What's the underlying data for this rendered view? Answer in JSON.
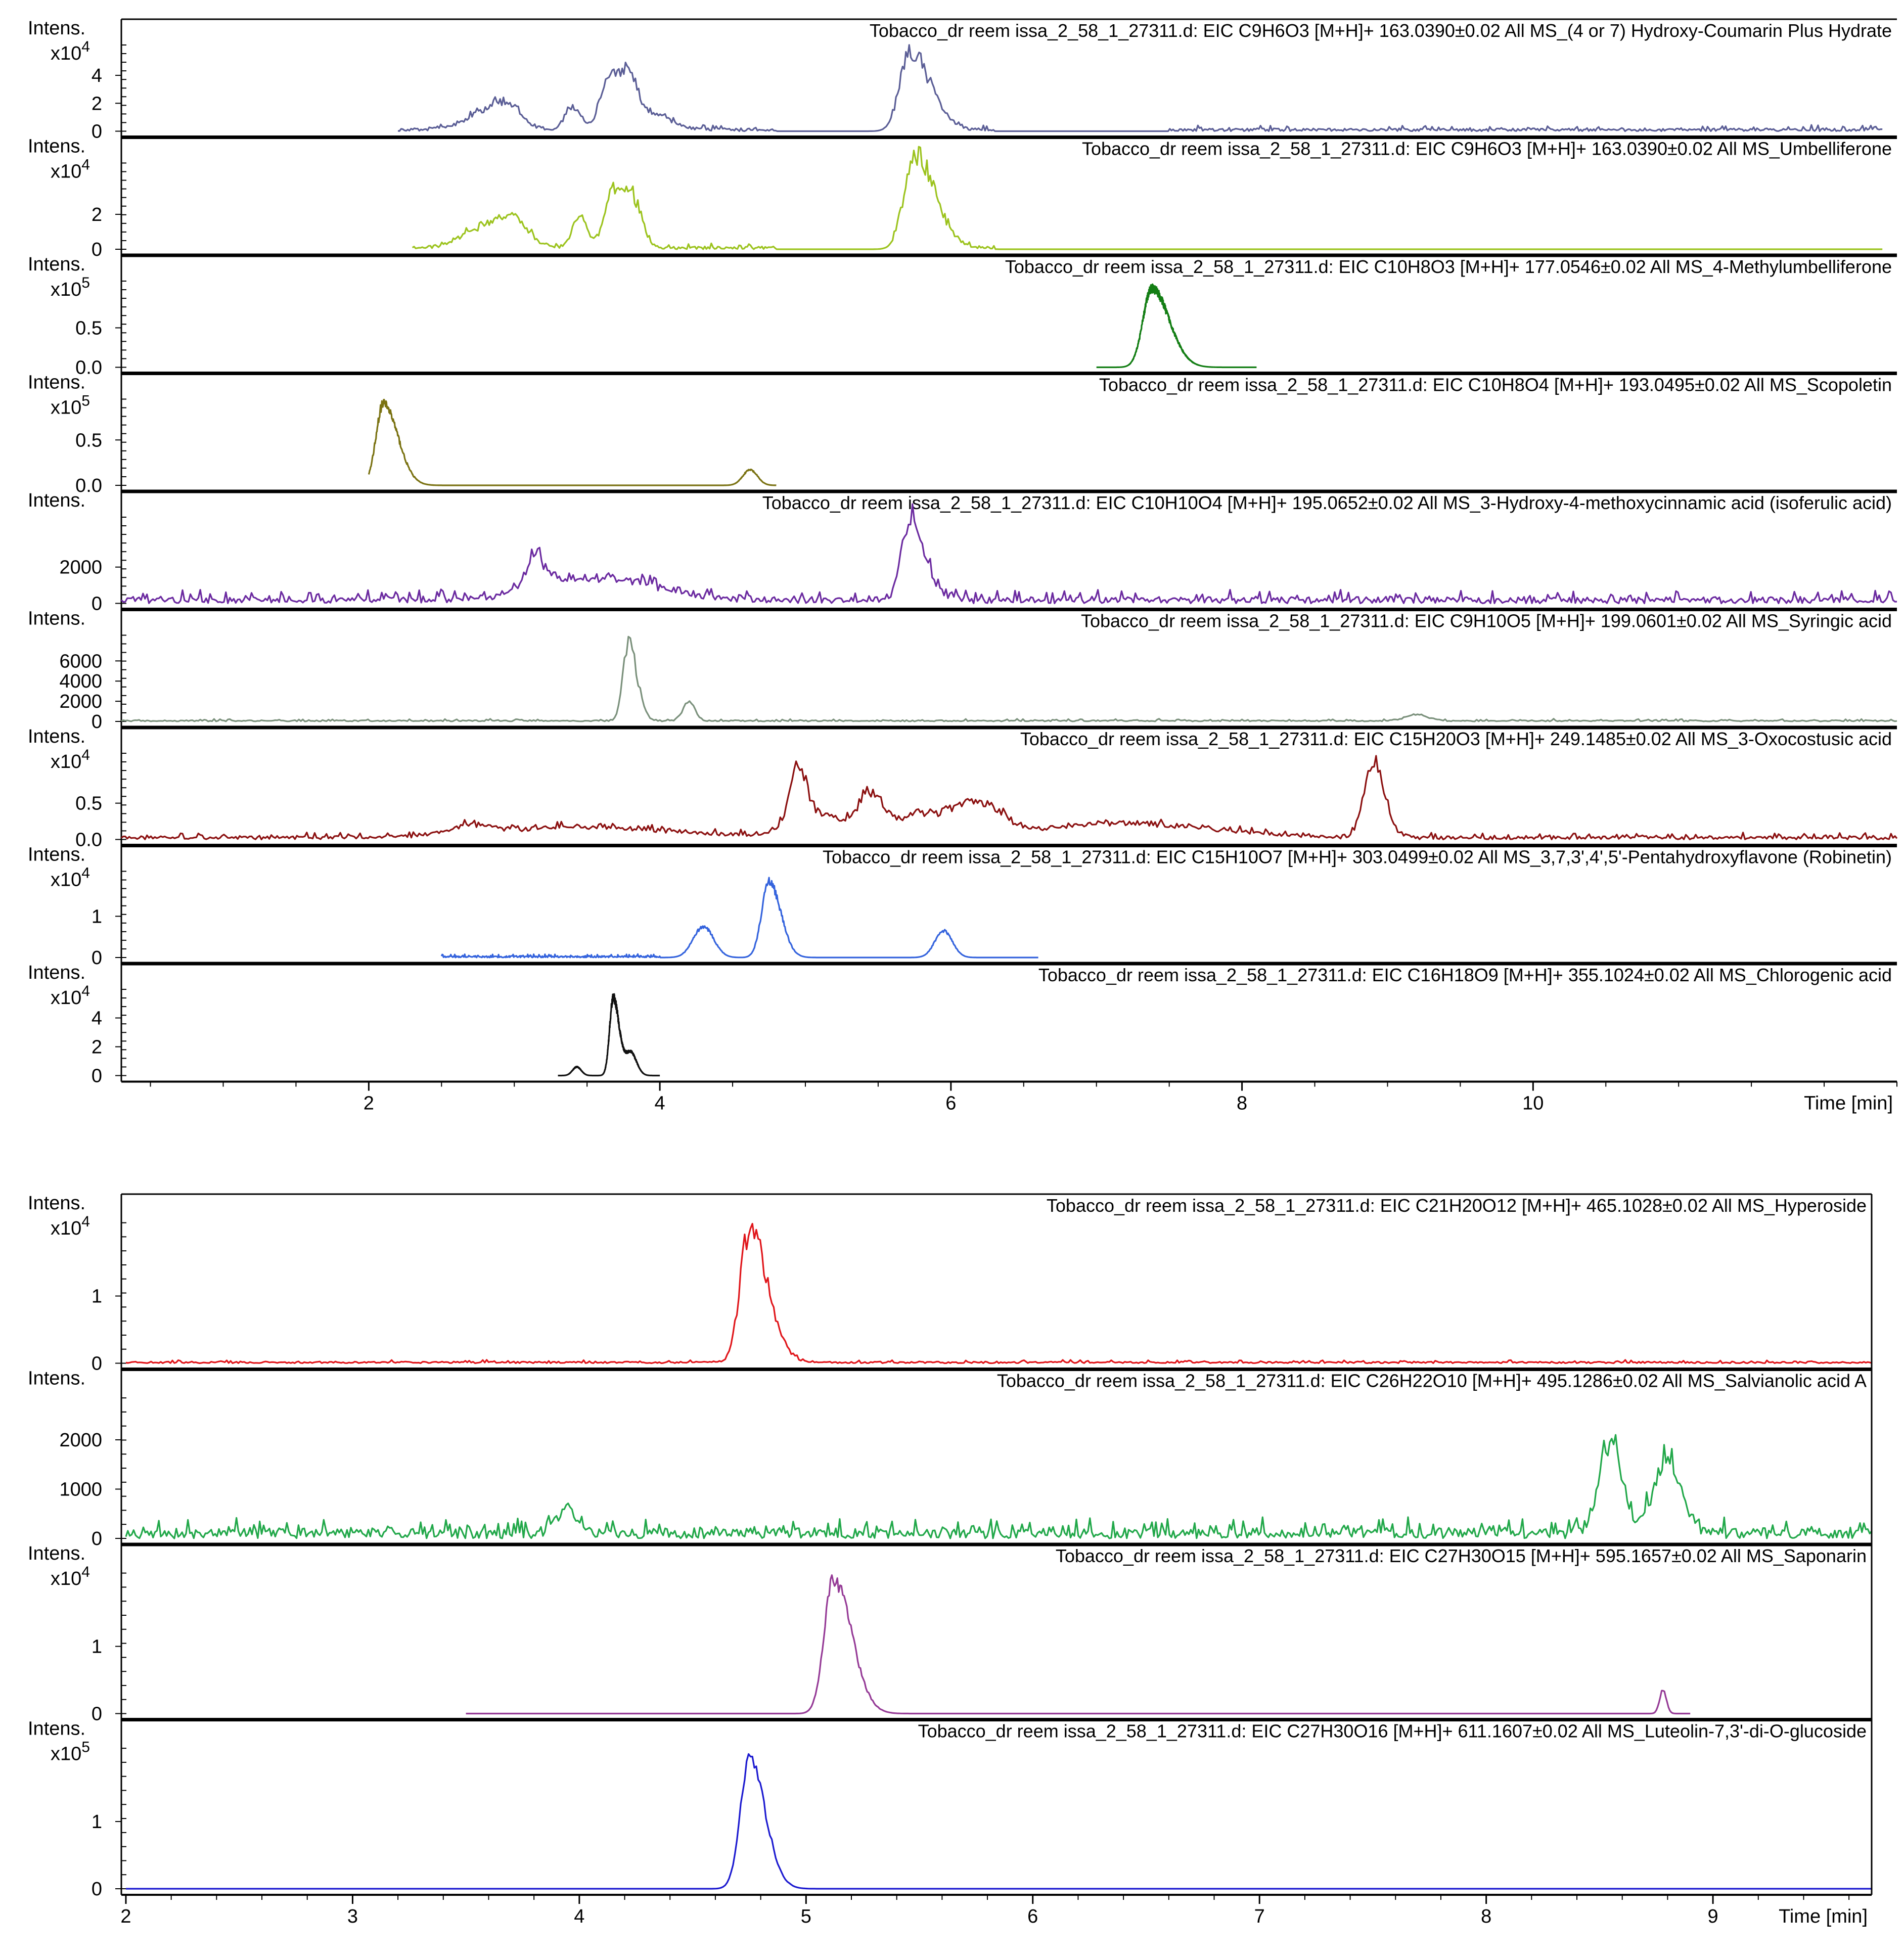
{
  "chart_data": [
    {
      "type": "line",
      "x_axis": {
        "label": "Time [min]",
        "range": [
          0.3,
          12.5
        ],
        "ticks": [
          2,
          4,
          6,
          8,
          10
        ],
        "tick_labels": [
          "2",
          "4",
          "6",
          "8",
          "10"
        ]
      },
      "panels": [
        {
          "y_label": "Intens.",
          "y_multiplier": "x10^4",
          "y_max": 6.5,
          "y_ticks": [
            0,
            2,
            4
          ],
          "y_tick_labels": [
            "0",
            "2",
            "4"
          ],
          "trace_title": "Tobacco_dr reem issa_2_58_1_27311.d: EIC C9H6O3 [M+H]+ 163.0390±0.02 All MS_(4 or 7) Hydroxy-Coumarin Plus Hydrate",
          "color": "#5b5e96",
          "x_start": 2.2,
          "x_end": 12.4,
          "noise": 0.25,
          "noise_segments": [
            [
              2.2,
              4.8
            ],
            [
              5.6,
              6.3
            ],
            [
              7.5,
              12.4
            ]
          ],
          "peaks": [
            {
              "x": 2.8,
              "y": 1.1,
              "w": 0.15
            },
            {
              "x": 2.95,
              "y": 1.3,
              "w": 0.1
            },
            {
              "x": 3.4,
              "y": 1.7,
              "w": 0.05
            },
            {
              "x": 3.65,
              "y": 3.4,
              "w": 0.06
            },
            {
              "x": 3.78,
              "y": 3.0,
              "w": 0.06
            },
            {
              "x": 3.9,
              "y": 1.3,
              "w": 0.15
            },
            {
              "x": 5.72,
              "y": 5.6,
              "w": 0.07,
              "tail": 0.14
            }
          ]
        },
        {
          "y_label": "Intens.",
          "y_multiplier": "x10^4",
          "y_max": 5.2,
          "y_ticks": [
            0,
            2
          ],
          "y_tick_labels": [
            "0",
            "2"
          ],
          "trace_title": "Tobacco_dr reem issa_2_58_1_27311.d: EIC C9H6O3 [M+H]+ 163.0390±0.02 All MS_Umbelliferone",
          "color": "#9cc31e",
          "x_start": 2.3,
          "x_end": 12.4,
          "noise": 0.2,
          "noise_segments": [
            [
              2.3,
              4.8
            ],
            [
              5.6,
              6.3
            ]
          ],
          "peaks": [
            {
              "x": 2.8,
              "y": 1.2,
              "w": 0.15
            },
            {
              "x": 3.0,
              "y": 1.3,
              "w": 0.1
            },
            {
              "x": 3.45,
              "y": 1.9,
              "w": 0.05
            },
            {
              "x": 3.68,
              "y": 3.2,
              "w": 0.06
            },
            {
              "x": 3.82,
              "y": 2.7,
              "w": 0.06
            },
            {
              "x": 5.75,
              "y": 5.4,
              "w": 0.07,
              "tail": 0.14
            }
          ]
        },
        {
          "y_label": "Intens.",
          "y_multiplier": "x10^5",
          "y_max": 1.15,
          "y_ticks": [
            0.0,
            0.5
          ],
          "y_tick_labels": [
            "0.0",
            "0.5"
          ],
          "trace_title": "Tobacco_dr reem issa_2_58_1_27311.d: EIC C10H8O3 [M+H]+ 177.0546±0.02 All MS_4-Methylumbelliferone",
          "color": "#137e14",
          "x_start": 7.0,
          "x_end": 8.1,
          "noise": 0.0,
          "noise_segments": [],
          "peaks": [
            {
              "x": 7.38,
              "y": 1.0,
              "w": 0.06,
              "tail": 0.12
            }
          ]
        },
        {
          "y_label": "Intens.",
          "y_multiplier": "x10^5",
          "y_max": 1.0,
          "y_ticks": [
            0.0,
            0.5
          ],
          "y_tick_labels": [
            "0.0",
            "0.5"
          ],
          "trace_title": "Tobacco_dr reem issa_2_58_1_27311.d: EIC C10H8O4 [M+H]+ 193.0495±0.02 All MS_Scopoletin",
          "color": "#7a7212",
          "x_start": 2.0,
          "x_end": 4.8,
          "noise": 0.0,
          "noise_segments": [],
          "peaks": [
            {
              "x": 2.1,
              "y": 0.9,
              "w": 0.05,
              "tail": 0.1
            },
            {
              "x": 4.62,
              "y": 0.17,
              "w": 0.05
            }
          ]
        },
        {
          "y_label": "Intens.",
          "y_multiplier": "",
          "y_max": 5000,
          "y_ticks": [
            0,
            2000
          ],
          "y_tick_labels": [
            "0",
            "2000"
          ],
          "trace_title": "Tobacco_dr reem issa_2_58_1_27311.d: EIC C10H10O4 [M+H]+ 195.0652±0.02 All MS_3-Hydroxy-4-methoxycinnamic acid (isoferulic acid)",
          "color": "#6b2aa0",
          "x_start": 0.3,
          "x_end": 12.5,
          "noise": 450,
          "noise_segments": [
            [
              0.3,
              12.5
            ]
          ],
          "peaks": [
            {
              "x": 3.15,
              "y": 1600,
              "w": 0.08
            },
            {
              "x": 3.6,
              "y": 1200,
              "w": 0.4
            },
            {
              "x": 5.72,
              "y": 4300,
              "w": 0.06,
              "tail": 0.1
            }
          ]
        },
        {
          "y_label": "Intens.",
          "y_multiplier": "",
          "y_max": 9000,
          "y_ticks": [
            0,
            2000,
            4000,
            6000
          ],
          "y_tick_labels": [
            "0",
            "2000",
            "4000",
            "6000"
          ],
          "trace_title": "Tobacco_dr reem issa_2_58_1_27311.d: EIC C9H10O5 [M+H]+ 199.0601±0.02 All MS_Syringic acid",
          "color": "#7b917c",
          "x_start": 0.3,
          "x_end": 12.5,
          "noise": 150,
          "noise_segments": [
            [
              0.3,
              12.5
            ]
          ],
          "peaks": [
            {
              "x": 3.78,
              "y": 7800,
              "w": 0.035,
              "tail": 0.06
            },
            {
              "x": 4.2,
              "y": 2000,
              "w": 0.04
            },
            {
              "x": 9.2,
              "y": 600,
              "w": 0.08
            }
          ]
        },
        {
          "y_label": "Intens.",
          "y_multiplier": "x10^4",
          "y_max": 1.25,
          "y_ticks": [
            0.0,
            0.5
          ],
          "y_tick_labels": [
            "0.0",
            "0.5"
          ],
          "trace_title": "Tobacco_dr reem issa_2_58_1_27311.d: EIC C15H20O3 [M+H]+ 249.1485±0.02 All MS_3-Oxocostusic acid",
          "color": "#8b1010",
          "x_start": 0.3,
          "x_end": 12.5,
          "noise": 0.06,
          "noise_segments": [
            [
              0.3,
              12.5
            ]
          ],
          "peaks": [
            {
              "x": 2.7,
              "y": 0.12,
              "w": 0.15
            },
            {
              "x": 3.5,
              "y": 0.15,
              "w": 0.6
            },
            {
              "x": 4.95,
              "y": 0.72,
              "w": 0.06
            },
            {
              "x": 5.1,
              "y": 0.3,
              "w": 0.2
            },
            {
              "x": 5.45,
              "y": 0.52,
              "w": 0.08
            },
            {
              "x": 5.8,
              "y": 0.32,
              "w": 0.2
            },
            {
              "x": 6.2,
              "y": 0.42,
              "w": 0.15
            },
            {
              "x": 7.2,
              "y": 0.2,
              "w": 0.6
            },
            {
              "x": 8.9,
              "y": 1.05,
              "w": 0.06,
              "tail": 0.08
            }
          ]
        },
        {
          "y_label": "Intens.",
          "y_multiplier": "x10^4",
          "y_max": 2.2,
          "y_ticks": [
            0,
            1
          ],
          "y_tick_labels": [
            "0",
            "1"
          ],
          "trace_title": "Tobacco_dr reem issa_2_58_1_27311.d: EIC C15H10O7 [M+H]+ 303.0499±0.02 All MS_3,7,3',4',5'-Pentahydroxyflavone (Robinetin)",
          "color": "#3463dd",
          "x_start": 2.5,
          "x_end": 6.6,
          "noise": 0.05,
          "noise_segments": [
            [
              2.5,
              4.0
            ]
          ],
          "peaks": [
            {
              "x": 4.3,
              "y": 0.75,
              "w": 0.07
            },
            {
              "x": 4.75,
              "y": 1.85,
              "w": 0.05,
              "tail": 0.08
            },
            {
              "x": 5.95,
              "y": 0.65,
              "w": 0.06
            }
          ]
        },
        {
          "y_label": "Intens.",
          "y_multiplier": "x10^4",
          "y_max": 6.3,
          "y_ticks": [
            0,
            2,
            4
          ],
          "y_tick_labels": [
            "0",
            "2",
            "4"
          ],
          "trace_title": "Tobacco_dr reem issa_2_58_1_27311.d: EIC C16H18O9 [M+H]+ 355.1024±0.02 All MS_Chlorogenic acid",
          "color": "#111111",
          "x_start": 3.3,
          "x_end": 4.0,
          "noise": 0.0,
          "noise_segments": [],
          "peaks": [
            {
              "x": 3.43,
              "y": 0.6,
              "w": 0.03
            },
            {
              "x": 3.68,
              "y": 5.4,
              "w": 0.025,
              "tail": 0.04
            },
            {
              "x": 3.8,
              "y": 1.6,
              "w": 0.04
            }
          ]
        }
      ]
    },
    {
      "type": "line",
      "x_axis": {
        "label": "Time [min]",
        "range": [
          1.98,
          9.7
        ],
        "ticks": [
          2,
          3,
          4,
          5,
          6,
          7,
          8,
          9
        ],
        "tick_labels": [
          "2",
          "3",
          "4",
          "5",
          "6",
          "7",
          "8",
          "9"
        ]
      },
      "panels": [
        {
          "y_label": "Intens.",
          "y_multiplier": "x10^4",
          "y_max": 2.2,
          "y_ticks": [
            0,
            1
          ],
          "y_tick_labels": [
            "0",
            "1"
          ],
          "trace_title": "Tobacco_dr reem issa_2_58_1_27311.d: EIC C21H20O12 [M+H]+ 465.1028±0.02 All MS_Hyperoside",
          "color": "#e0161b",
          "x_start": 2.0,
          "x_end": 9.7,
          "noise": 0.03,
          "noise_segments": [
            [
              2.0,
              9.7
            ]
          ],
          "peaks": [
            {
              "x": 4.75,
              "y": 2.0,
              "w": 0.04,
              "tail": 0.08
            }
          ]
        },
        {
          "y_label": "Intens.",
          "y_multiplier": "",
          "y_max": 3000,
          "y_ticks": [
            0,
            1000,
            2000
          ],
          "y_tick_labels": [
            "0",
            "1000",
            "2000"
          ],
          "trace_title": "Tobacco_dr reem issa_2_58_1_27311.d: EIC C26H22O10 [M+H]+ 495.1286±0.02 All MS_Salvianolic acid A",
          "color": "#22a84a",
          "x_start": 2.0,
          "x_end": 9.7,
          "noise": 250,
          "noise_segments": [
            [
              2.0,
              9.7
            ]
          ],
          "peaks": [
            {
              "x": 3.95,
              "y": 500,
              "w": 0.05
            },
            {
              "x": 8.55,
              "y": 1900,
              "w": 0.05
            },
            {
              "x": 8.8,
              "y": 1550,
              "w": 0.06
            }
          ]
        },
        {
          "y_label": "Intens.",
          "y_multiplier": "x10^4",
          "y_max": 2.2,
          "y_ticks": [
            0,
            1
          ],
          "y_tick_labels": [
            "0",
            "1"
          ],
          "trace_title": "Tobacco_dr reem issa_2_58_1_27311.d: EIC C27H30O15 [M+H]+ 595.1657±0.02 All MS_Saponarin",
          "color": "#953a96",
          "x_start": 3.5,
          "x_end": 8.9,
          "noise": 0.0,
          "noise_segments": [],
          "peaks": [
            {
              "x": 5.12,
              "y": 2.0,
              "w": 0.04,
              "tail": 0.08
            },
            {
              "x": 8.78,
              "y": 0.35,
              "w": 0.015
            }
          ]
        },
        {
          "y_label": "Intens.",
          "y_multiplier": "x10^5",
          "y_max": 2.2,
          "y_ticks": [
            0,
            1
          ],
          "y_tick_labels": [
            "0",
            "1"
          ],
          "trace_title": "Tobacco_dr reem issa_2_58_1_27311.d: EIC C27H30O16 [M+H]+ 611.1607±0.02 All MS_Luteolin-7,3'-di-O-glucoside",
          "color": "#1c1ad0",
          "x_start": 2.0,
          "x_end": 9.7,
          "noise": 0.0,
          "noise_segments": [],
          "peaks": [
            {
              "x": 4.75,
              "y": 1.9,
              "w": 0.04,
              "tail": 0.07
            }
          ]
        }
      ]
    }
  ]
}
